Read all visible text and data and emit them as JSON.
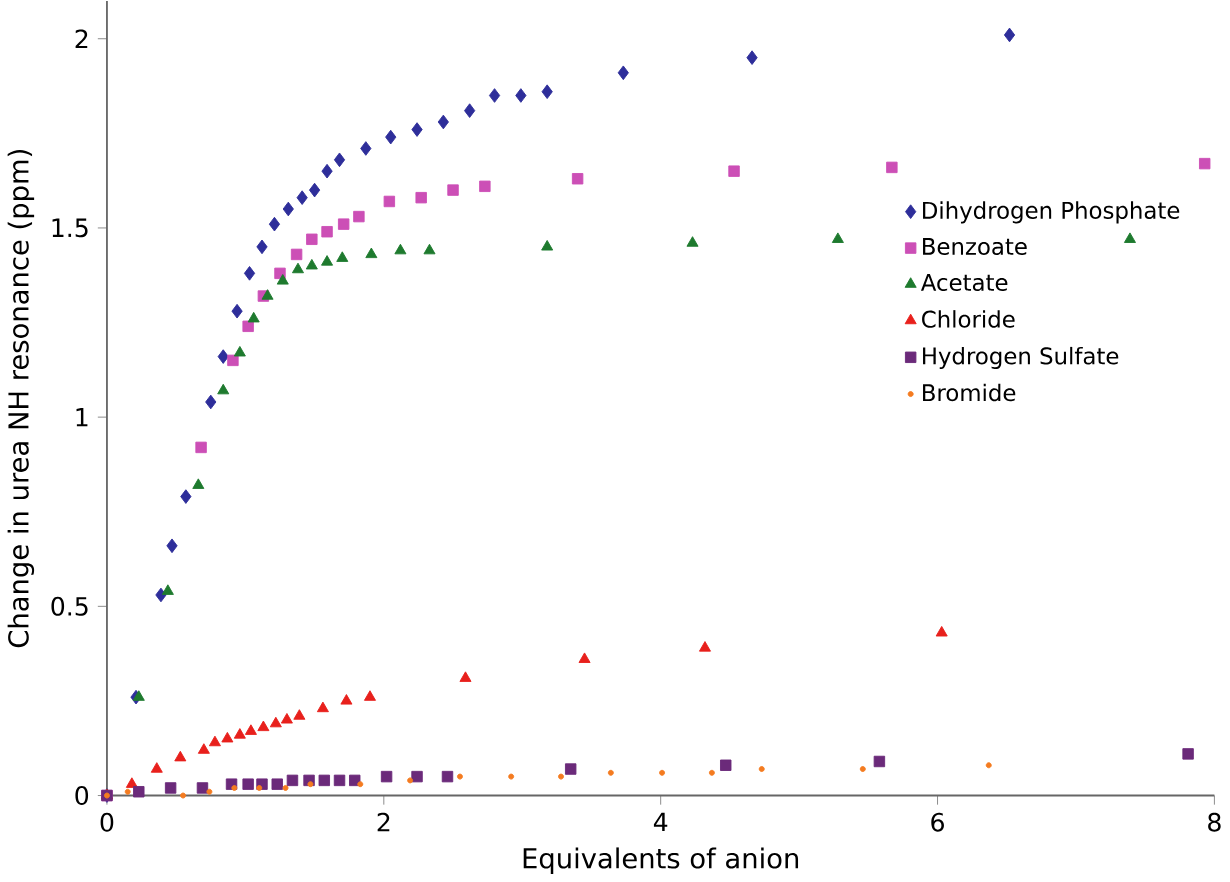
{
  "chart_data": {
    "type": "scatter",
    "xlabel": "Equivalents of anion",
    "ylabel": "Change in urea NH resonance (ppm)",
    "xlim": [
      0,
      8
    ],
    "ylim": [
      0,
      2.1
    ],
    "xticks": [
      0,
      2,
      4,
      6,
      8
    ],
    "yticks": [
      0,
      0.5,
      1,
      1.5,
      2
    ],
    "grid": false,
    "legend": "right",
    "series": [
      {
        "name": "Dihydrogen Phosphate",
        "color": "#2e2e9a",
        "marker": "diamond",
        "x": [
          0,
          0.21,
          0.39,
          0.47,
          0.57,
          0.66,
          0.75,
          0.84,
          0.94,
          1.03,
          1.12,
          1.21,
          1.31,
          1.41,
          1.5,
          1.59,
          1.68,
          1.87,
          2.05,
          2.24,
          2.43,
          2.62,
          2.8,
          2.99,
          3.18,
          3.73,
          4.66,
          6.52
        ],
        "values": [
          0,
          0.26,
          0.53,
          0.66,
          0.79,
          null,
          1.04,
          1.16,
          1.28,
          1.38,
          1.45,
          1.51,
          1.55,
          1.58,
          1.6,
          1.65,
          1.68,
          1.71,
          1.74,
          1.76,
          1.78,
          1.81,
          1.85,
          1.85,
          1.86,
          1.91,
          1.95,
          2.01
        ]
      },
      {
        "name": "Benzoate",
        "color": "#cc4fb6",
        "marker": "square",
        "x": [
          0,
          0.68,
          0.91,
          1.02,
          1.13,
          1.25,
          1.37,
          1.48,
          1.59,
          1.71,
          1.82,
          2.04,
          2.27,
          2.5,
          2.73,
          3.4,
          4.53,
          5.67,
          7.93
        ],
        "values": [
          0,
          0.92,
          1.15,
          1.24,
          1.32,
          1.38,
          1.43,
          1.47,
          1.49,
          1.51,
          1.53,
          1.57,
          1.58,
          1.6,
          1.61,
          1.63,
          1.65,
          1.66,
          1.67
        ]
      },
      {
        "name": "Acetate",
        "color": "#1e7a2e",
        "marker": "triangle",
        "x": [
          0,
          0.23,
          0.44,
          0.66,
          0.84,
          0.96,
          1.06,
          1.16,
          1.27,
          1.38,
          1.48,
          1.59,
          1.7,
          1.91,
          2.12,
          2.33,
          3.18,
          4.23,
          5.28,
          7.39
        ],
        "values": [
          0,
          0.26,
          0.54,
          0.82,
          1.07,
          1.17,
          1.26,
          1.32,
          1.36,
          1.39,
          1.4,
          1.41,
          1.42,
          1.43,
          1.44,
          1.44,
          1.45,
          1.46,
          1.47,
          1.47
        ]
      },
      {
        "name": "Chloride",
        "color": "#e8201c",
        "marker": "triangle",
        "x": [
          0,
          0.18,
          0.36,
          0.53,
          0.7,
          0.78,
          0.87,
          0.96,
          1.04,
          1.13,
          1.22,
          1.3,
          1.39,
          1.56,
          1.73,
          1.9,
          2.59,
          3.45,
          4.32,
          6.03
        ],
        "values": [
          0,
          0.03,
          0.07,
          0.1,
          0.12,
          0.14,
          0.15,
          0.16,
          0.17,
          0.18,
          0.19,
          0.2,
          0.21,
          0.23,
          0.25,
          0.26,
          0.31,
          0.36,
          0.39,
          0.43
        ]
      },
      {
        "name": "Hydrogen Sulfate",
        "color": "#6b2a7a",
        "marker": "square",
        "x": [
          0,
          0.23,
          0.46,
          0.69,
          0.9,
          1.02,
          1.12,
          1.23,
          1.34,
          1.46,
          1.57,
          1.68,
          1.79,
          2.02,
          2.24,
          2.46,
          3.35,
          4.47,
          5.58,
          7.81
        ],
        "values": [
          0,
          0.01,
          0.02,
          0.02,
          0.03,
          0.03,
          0.03,
          0.03,
          0.04,
          0.04,
          0.04,
          0.04,
          0.04,
          0.05,
          0.05,
          0.05,
          0.07,
          0.08,
          0.09,
          0.11
        ]
      },
      {
        "name": "Bromide",
        "color": "#f47b20",
        "marker": "circle",
        "x": [
          0,
          0.15,
          0.55,
          0.74,
          0.92,
          1.1,
          1.29,
          1.47,
          1.83,
          2.19,
          2.55,
          2.92,
          3.28,
          3.64,
          4.01,
          4.37,
          4.73,
          5.46,
          6.37
        ],
        "values": [
          0,
          0.01,
          0,
          0.01,
          0.02,
          0.02,
          0.02,
          0.03,
          0.03,
          0.04,
          0.05,
          0.05,
          0.05,
          0.06,
          0.06,
          0.06,
          0.07,
          0.07,
          0.08
        ]
      }
    ]
  }
}
